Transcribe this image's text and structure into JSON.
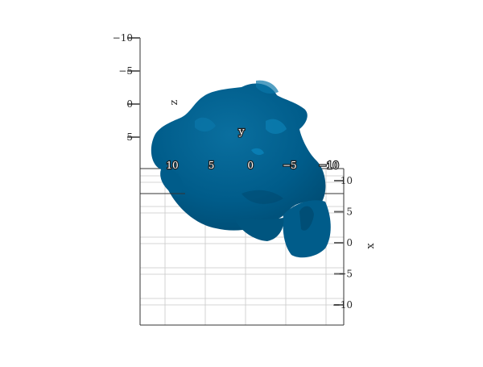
{
  "chart_data": {
    "type": "surface3d",
    "title": "",
    "surface_color": "#005c8a",
    "grid": true,
    "axes": {
      "x": {
        "label": "x",
        "ticks": [
          "10",
          "5",
          "0",
          "−5",
          "−10"
        ]
      },
      "y": {
        "label": "y",
        "ticks": [
          "10",
          "5",
          "0",
          "−5",
          "−10"
        ]
      },
      "z": {
        "label": "z",
        "ticks": [
          "−10",
          "−5",
          "0",
          "5"
        ]
      }
    }
  }
}
